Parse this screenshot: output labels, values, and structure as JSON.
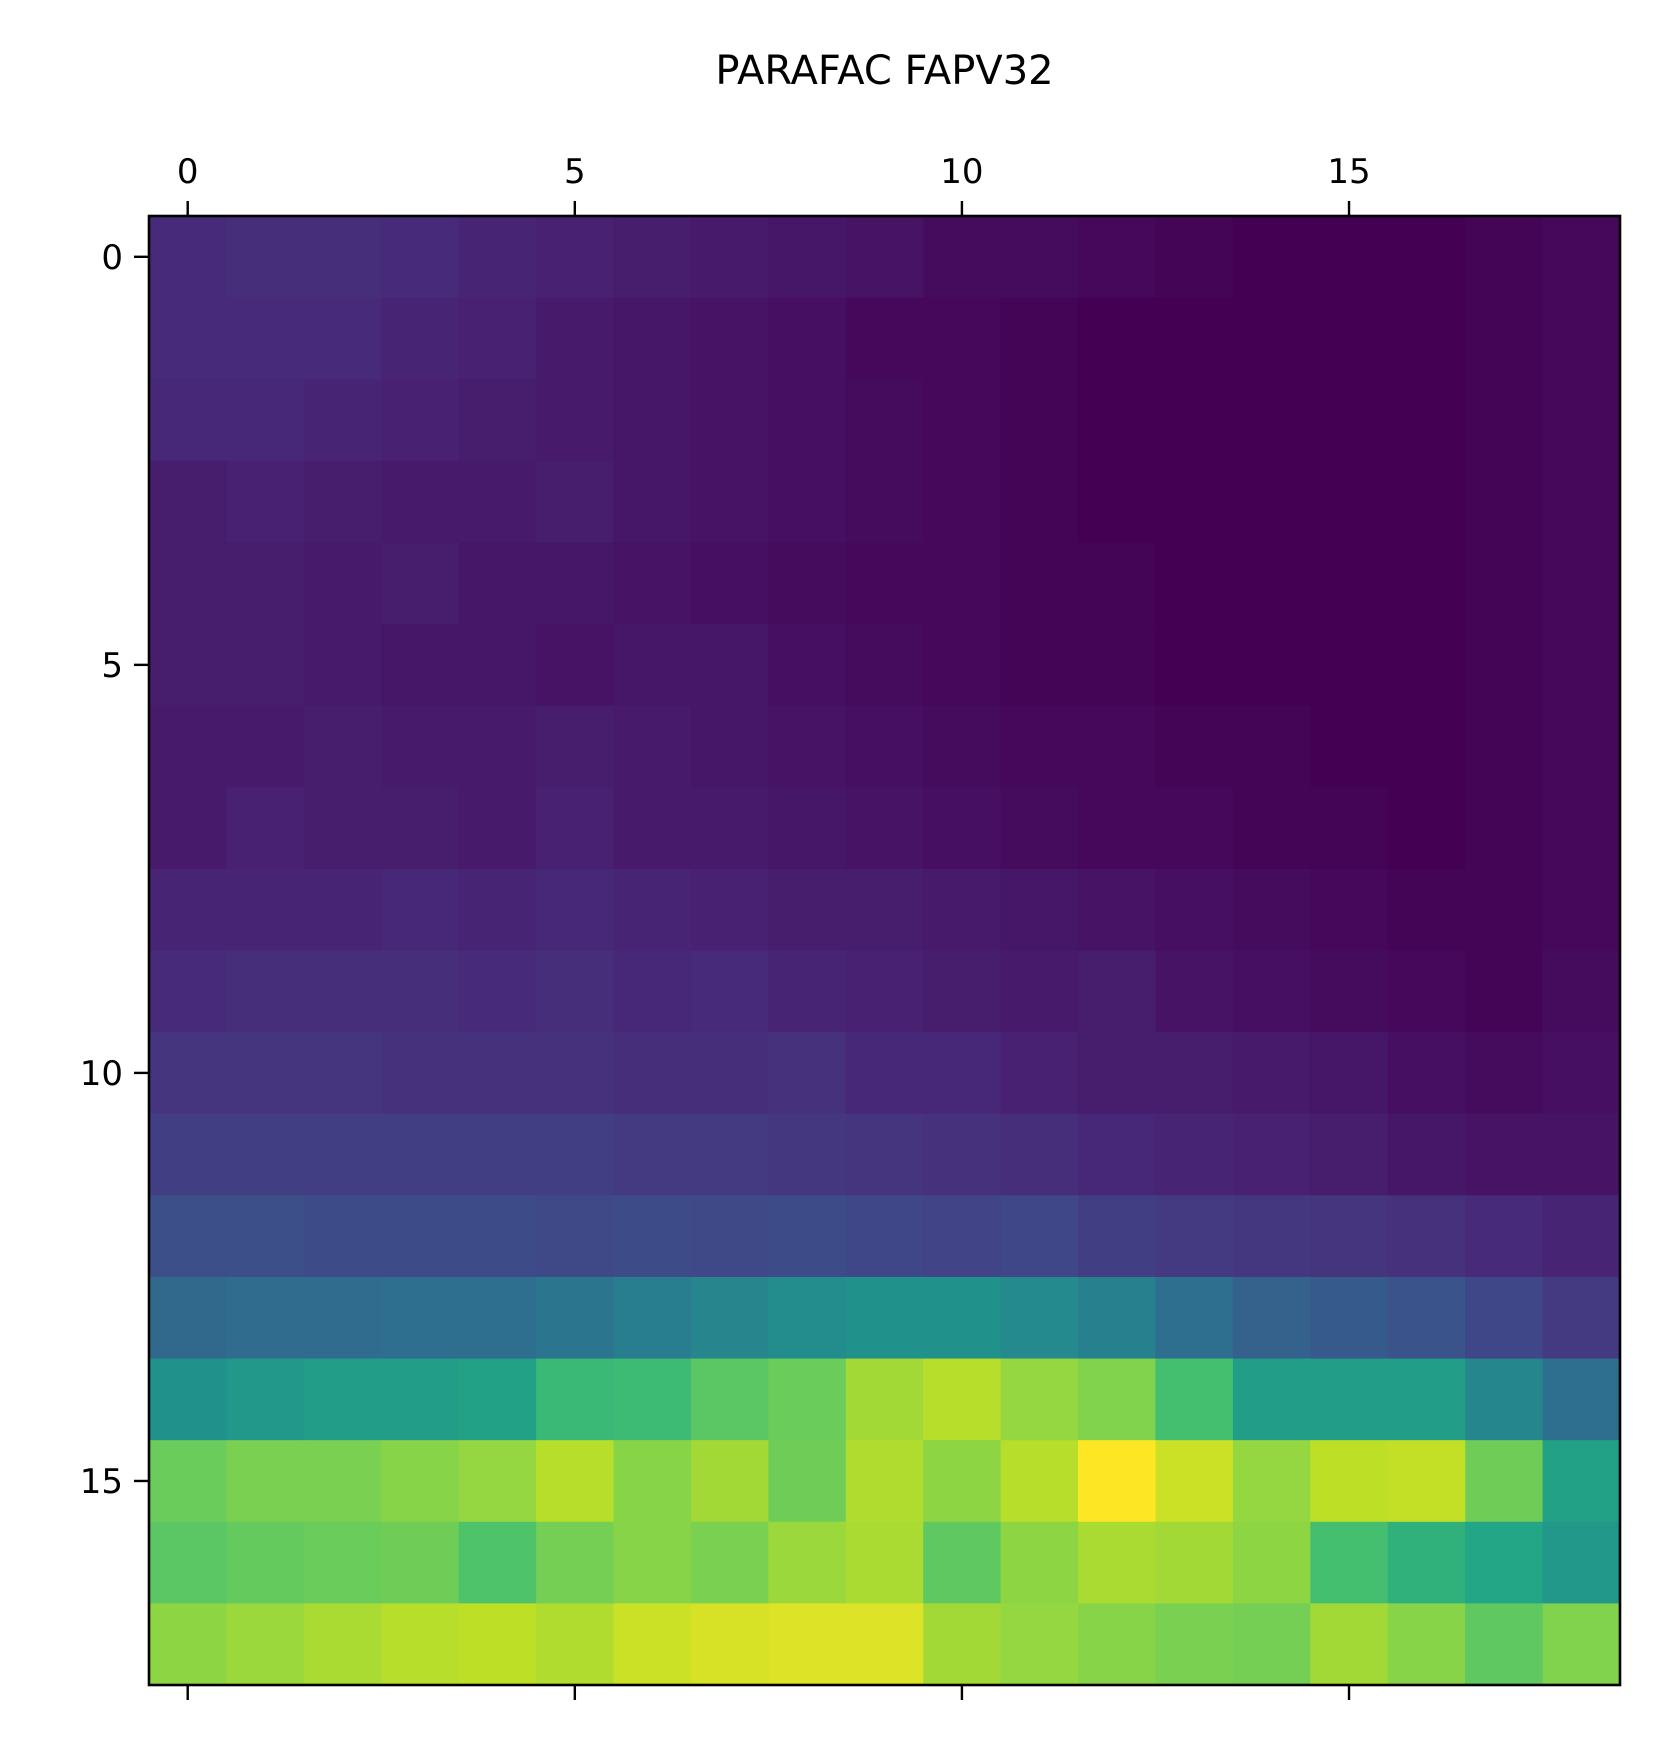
{
  "chart_data": {
    "type": "heatmap",
    "title": "PARAFAC FAPV32",
    "x_ticks": [
      0,
      5,
      10,
      15
    ],
    "y_ticks": [
      0,
      5,
      10,
      15
    ],
    "x_tick_position": "top",
    "colormap": "viridis",
    "vmin": 0.0,
    "vmax": 1.0,
    "grid": false,
    "values": [
      [
        0.12,
        0.13,
        0.13,
        0.12,
        0.1,
        0.09,
        0.08,
        0.07,
        0.06,
        0.05,
        0.03,
        0.03,
        0.02,
        0.01,
        0.0,
        0.0,
        0.0,
        0.01,
        0.02
      ],
      [
        0.12,
        0.12,
        0.12,
        0.1,
        0.09,
        0.07,
        0.06,
        0.05,
        0.04,
        0.02,
        0.02,
        0.01,
        0.0,
        0.0,
        0.0,
        0.0,
        0.0,
        0.01,
        0.02
      ],
      [
        0.11,
        0.11,
        0.1,
        0.09,
        0.08,
        0.07,
        0.06,
        0.05,
        0.04,
        0.03,
        0.02,
        0.01,
        0.0,
        0.0,
        0.0,
        0.0,
        0.0,
        0.01,
        0.02
      ],
      [
        0.08,
        0.09,
        0.08,
        0.07,
        0.07,
        0.08,
        0.06,
        0.05,
        0.04,
        0.03,
        0.02,
        0.01,
        0.0,
        0.0,
        0.0,
        0.0,
        0.0,
        0.01,
        0.02
      ],
      [
        0.08,
        0.08,
        0.07,
        0.08,
        0.06,
        0.06,
        0.05,
        0.04,
        0.03,
        0.02,
        0.02,
        0.01,
        0.01,
        0.0,
        0.0,
        0.0,
        0.0,
        0.01,
        0.02
      ],
      [
        0.08,
        0.08,
        0.07,
        0.06,
        0.06,
        0.05,
        0.06,
        0.06,
        0.04,
        0.03,
        0.02,
        0.01,
        0.01,
        0.0,
        0.0,
        0.0,
        0.0,
        0.01,
        0.02
      ],
      [
        0.07,
        0.07,
        0.08,
        0.07,
        0.07,
        0.08,
        0.07,
        0.06,
        0.05,
        0.04,
        0.03,
        0.02,
        0.02,
        0.01,
        0.01,
        0.0,
        0.0,
        0.01,
        0.02
      ],
      [
        0.07,
        0.09,
        0.08,
        0.08,
        0.07,
        0.09,
        0.07,
        0.07,
        0.06,
        0.05,
        0.04,
        0.03,
        0.02,
        0.02,
        0.01,
        0.01,
        0.0,
        0.01,
        0.02
      ],
      [
        0.1,
        0.1,
        0.1,
        0.11,
        0.1,
        0.11,
        0.1,
        0.09,
        0.08,
        0.08,
        0.07,
        0.06,
        0.05,
        0.04,
        0.03,
        0.02,
        0.01,
        0.01,
        0.02
      ],
      [
        0.12,
        0.13,
        0.13,
        0.13,
        0.12,
        0.13,
        0.11,
        0.12,
        0.1,
        0.09,
        0.08,
        0.07,
        0.08,
        0.05,
        0.04,
        0.03,
        0.02,
        0.01,
        0.03
      ],
      [
        0.15,
        0.15,
        0.15,
        0.14,
        0.14,
        0.14,
        0.13,
        0.13,
        0.14,
        0.11,
        0.11,
        0.09,
        0.08,
        0.08,
        0.07,
        0.06,
        0.04,
        0.03,
        0.04
      ],
      [
        0.18,
        0.18,
        0.18,
        0.18,
        0.18,
        0.18,
        0.17,
        0.17,
        0.16,
        0.15,
        0.14,
        0.13,
        0.11,
        0.1,
        0.09,
        0.08,
        0.06,
        0.05,
        0.05
      ],
      [
        0.24,
        0.24,
        0.23,
        0.23,
        0.23,
        0.22,
        0.23,
        0.22,
        0.23,
        0.21,
        0.2,
        0.21,
        0.18,
        0.17,
        0.16,
        0.15,
        0.14,
        0.12,
        0.1
      ],
      [
        0.34,
        0.35,
        0.35,
        0.36,
        0.36,
        0.39,
        0.42,
        0.45,
        0.48,
        0.5,
        0.5,
        0.47,
        0.43,
        0.36,
        0.31,
        0.28,
        0.26,
        0.21,
        0.17
      ],
      [
        0.5,
        0.53,
        0.55,
        0.55,
        0.57,
        0.67,
        0.68,
        0.74,
        0.77,
        0.86,
        0.89,
        0.84,
        0.81,
        0.7,
        0.55,
        0.55,
        0.55,
        0.46,
        0.36
      ],
      [
        0.77,
        0.8,
        0.8,
        0.82,
        0.84,
        0.89,
        0.82,
        0.86,
        0.78,
        0.88,
        0.83,
        0.89,
        1.0,
        0.92,
        0.84,
        0.9,
        0.91,
        0.78,
        0.57
      ],
      [
        0.74,
        0.76,
        0.77,
        0.78,
        0.72,
        0.79,
        0.82,
        0.8,
        0.85,
        0.87,
        0.75,
        0.83,
        0.87,
        0.86,
        0.83,
        0.7,
        0.64,
        0.59,
        0.53
      ],
      [
        0.83,
        0.85,
        0.87,
        0.89,
        0.9,
        0.88,
        0.92,
        0.94,
        0.95,
        0.95,
        0.86,
        0.84,
        0.82,
        0.8,
        0.79,
        0.86,
        0.82,
        0.75,
        0.81
      ]
    ]
  }
}
